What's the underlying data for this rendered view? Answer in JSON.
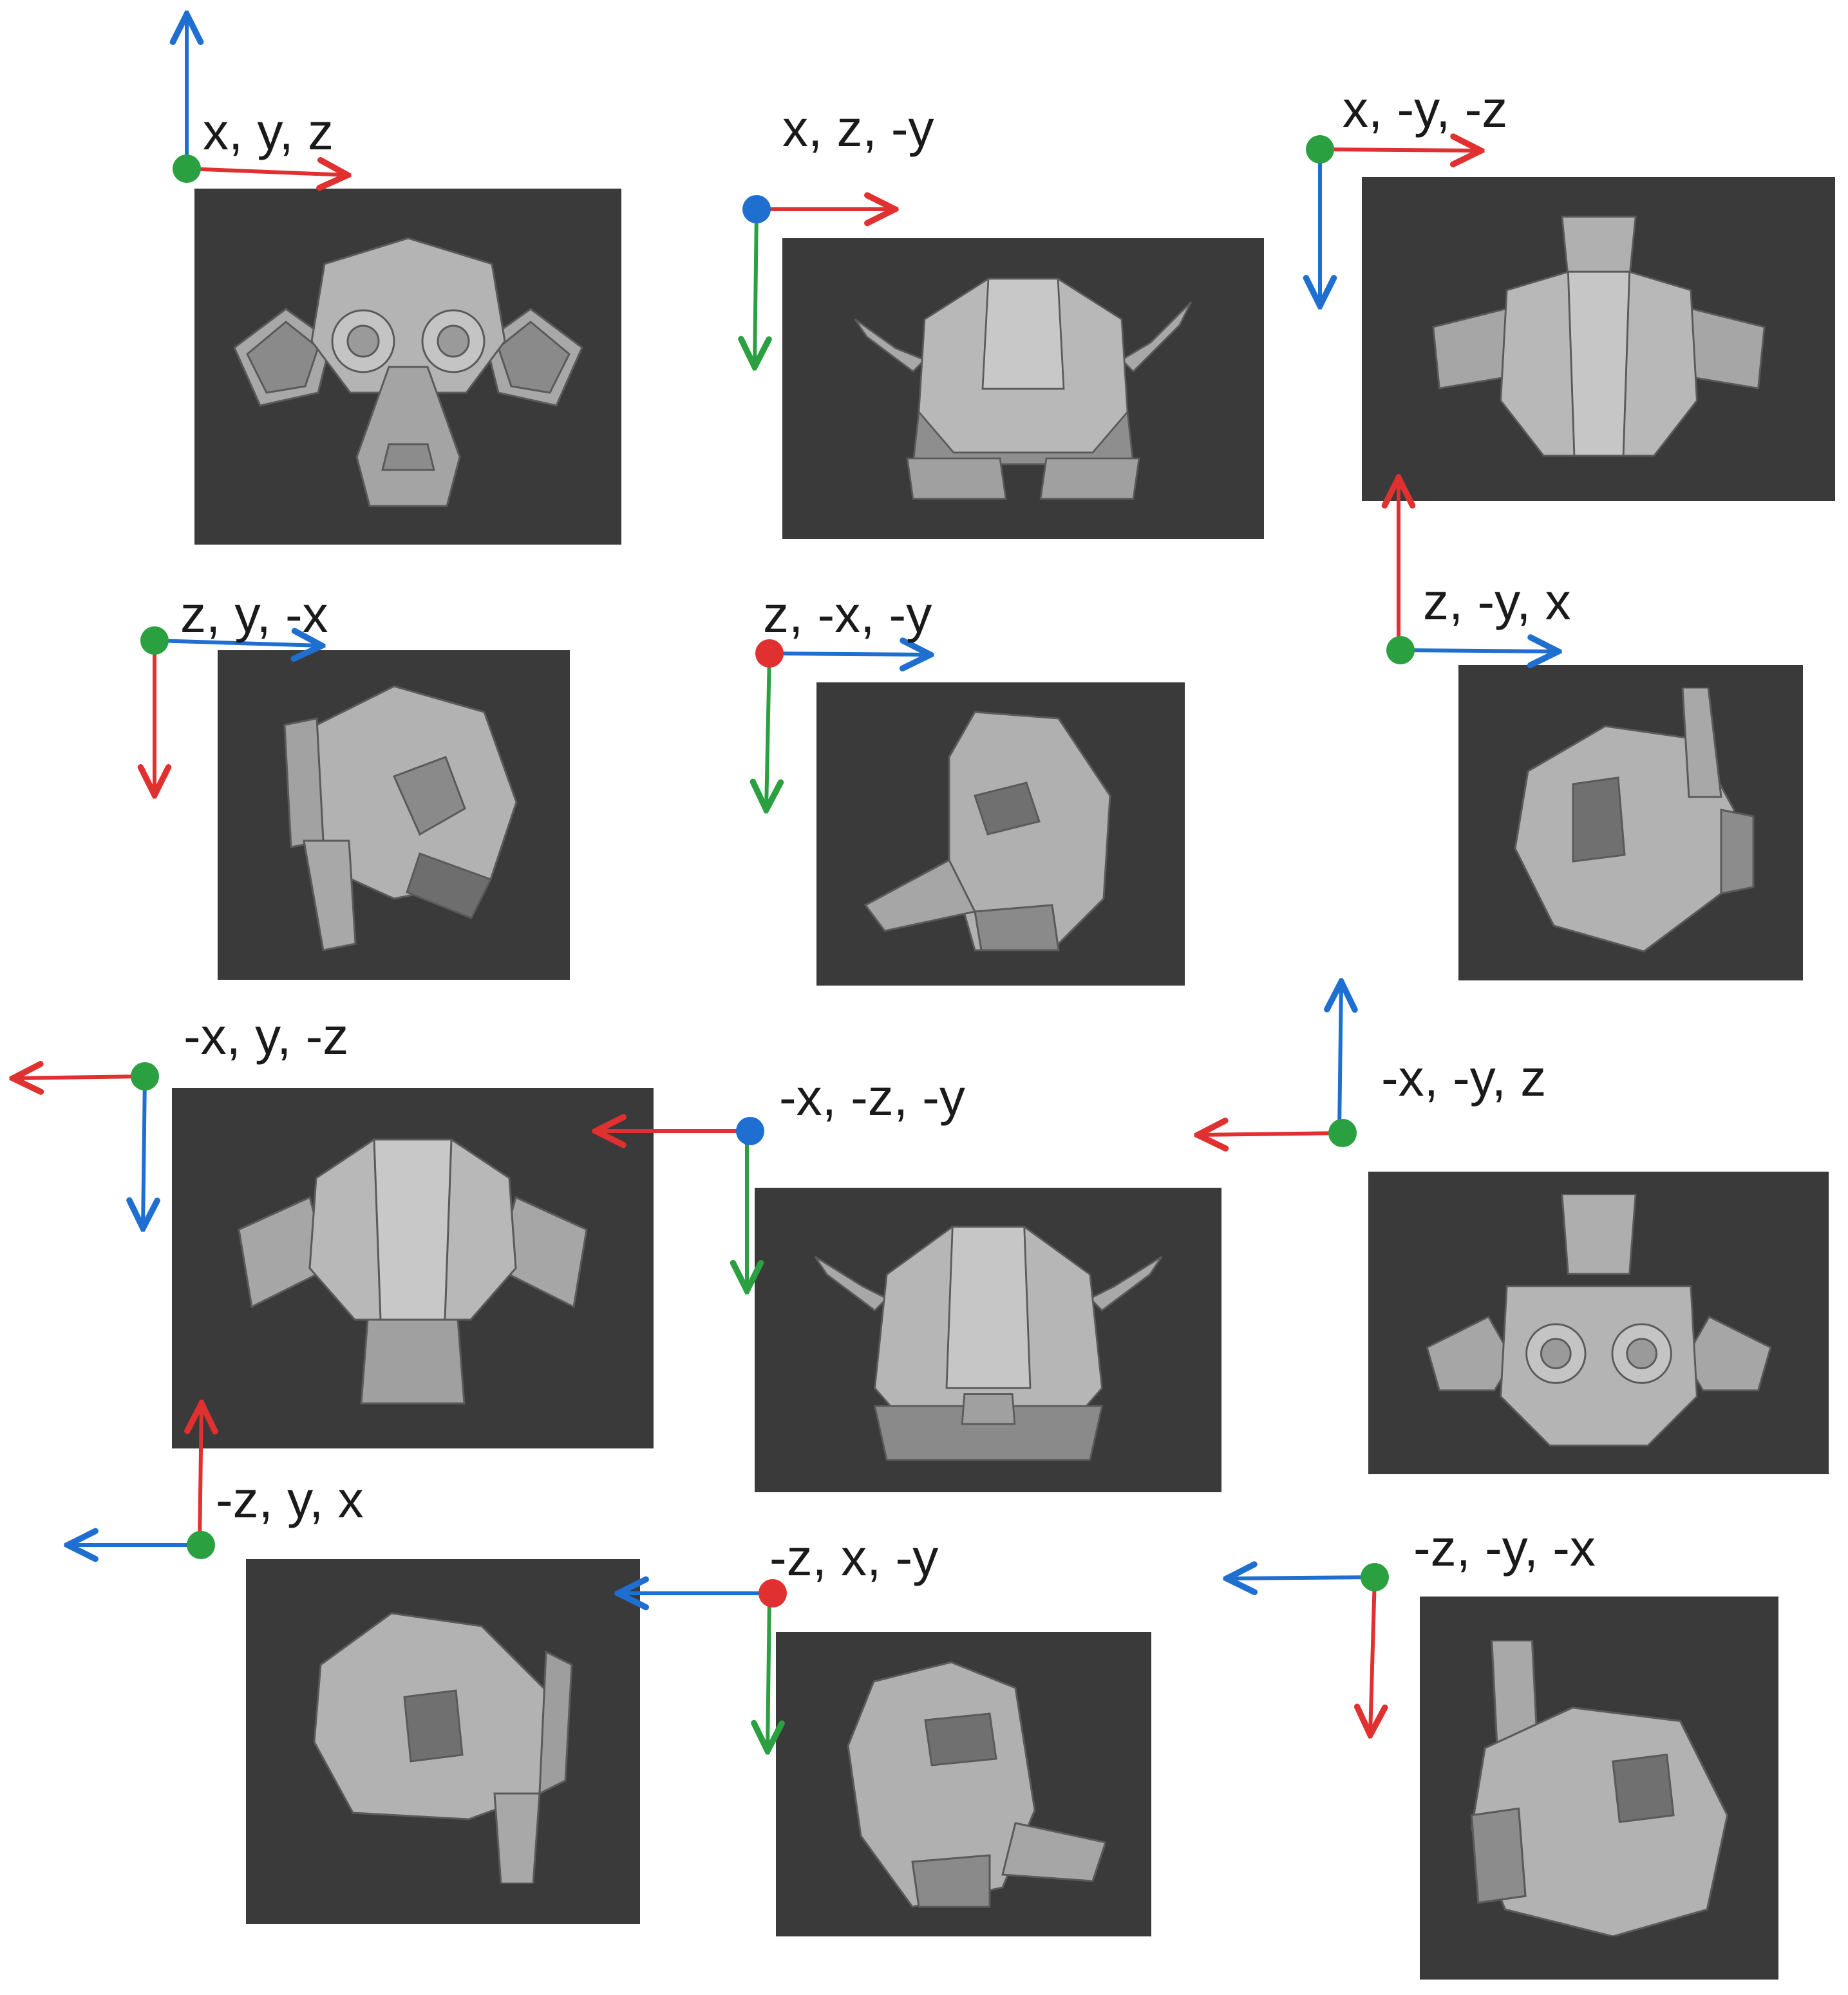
{
  "colors": {
    "background": "#ffffff",
    "viewport": "#3a3a3a",
    "mesh_light": "#b4b4b4",
    "mesh_mid": "#9a9a9a",
    "mesh_dark": "#6e6e6e",
    "x_axis": "#e03030",
    "y_axis": "#2aa040",
    "z_axis": "#1f6fd0",
    "text": "#1a1a1a"
  },
  "panels": [
    {
      "label": "x, y, z",
      "view": "front",
      "origin_color": "green",
      "horizontal_arrow": "red",
      "vertical_arrow": "blue"
    },
    {
      "label": "x, z, -y",
      "view": "top",
      "origin_color": "blue",
      "horizontal_arrow": "red",
      "vertical_arrow": "green"
    },
    {
      "label": "x, -y, -z",
      "view": "bottom",
      "origin_color": "green",
      "horizontal_arrow": "red",
      "vertical_arrow": "blue"
    },
    {
      "label": "z, y, -x",
      "view": "side-left",
      "origin_color": "green",
      "horizontal_arrow": "blue",
      "vertical_arrow": "red"
    },
    {
      "label": "z, -x, -y",
      "view": "oblique-left",
      "origin_color": "red",
      "horizontal_arrow": "blue",
      "vertical_arrow": "green"
    },
    {
      "label": "z, -y, x",
      "view": "side-right",
      "origin_color": "green",
      "horizontal_arrow": "blue",
      "vertical_arrow": "red"
    },
    {
      "label": "-x, y, -z",
      "view": "back",
      "origin_color": "green",
      "horizontal_arrow": "red",
      "vertical_arrow": "blue"
    },
    {
      "label": "-x, -z, -y",
      "view": "top-flipped",
      "origin_color": "blue",
      "horizontal_arrow": "red",
      "vertical_arrow": "green"
    },
    {
      "label": "-x, -y, z",
      "view": "front-inverted",
      "origin_color": "green",
      "horizontal_arrow": "red",
      "vertical_arrow": "blue"
    },
    {
      "label": "-z, y, x",
      "view": "side-right-2",
      "origin_color": "green",
      "horizontal_arrow": "blue",
      "vertical_arrow": "red"
    },
    {
      "label": "-z, x, -y",
      "view": "oblique-right",
      "origin_color": "red",
      "horizontal_arrow": "blue",
      "vertical_arrow": "green"
    },
    {
      "label": "-z, -y, -x",
      "view": "side-left-2",
      "origin_color": "green",
      "horizontal_arrow": "blue",
      "vertical_arrow": "red"
    }
  ]
}
